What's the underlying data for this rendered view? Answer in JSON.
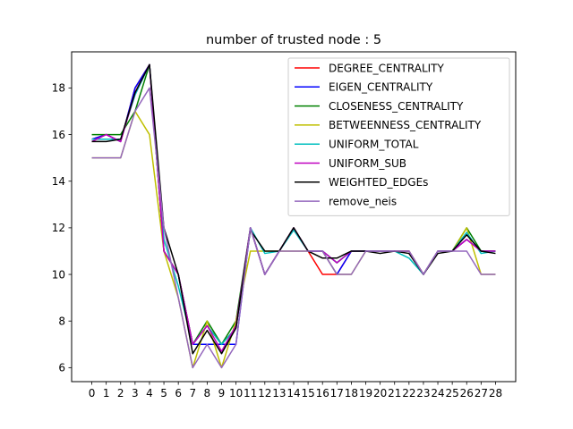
{
  "chart_data": {
    "type": "line",
    "title": "number of trusted node : 5",
    "xlabel": "",
    "ylabel": "",
    "x": [
      0,
      1,
      2,
      3,
      4,
      5,
      6,
      7,
      8,
      9,
      10,
      11,
      12,
      13,
      14,
      15,
      16,
      17,
      18,
      19,
      20,
      21,
      22,
      23,
      24,
      25,
      26,
      27,
      28
    ],
    "xlim": [
      -1.4,
      29.4
    ],
    "ylim": [
      5.4,
      19.55
    ],
    "yticks": [
      6,
      8,
      10,
      12,
      14,
      16,
      18
    ],
    "grid": false,
    "legend_position": "top-right",
    "series": [
      {
        "name": "DEGREE_CENTRALITY",
        "color": "#ff0000",
        "values": [
          15.8,
          16,
          15.7,
          18,
          19,
          11,
          10,
          7,
          7.8,
          7,
          7.7,
          12,
          10,
          11,
          12,
          11,
          10,
          10,
          11,
          11,
          11,
          11,
          11,
          10,
          11,
          11,
          11.5,
          11,
          11
        ]
      },
      {
        "name": "EIGEN_CENTRALITY",
        "color": "#0000ff",
        "values": [
          15.8,
          16,
          15.7,
          18,
          19,
          11,
          10,
          7,
          7,
          7,
          7,
          12,
          10,
          11,
          12,
          11,
          11,
          10,
          11,
          11,
          11,
          11,
          11,
          10,
          11,
          11,
          11.5,
          11,
          11
        ]
      },
      {
        "name": "CLOSENESS_CENTRALITY",
        "color": "#008000",
        "values": [
          16,
          16,
          16,
          17,
          19,
          11,
          10,
          7,
          8,
          7,
          8,
          12,
          10,
          11,
          12,
          11,
          11,
          10.5,
          11,
          11,
          11,
          11,
          11,
          10,
          11,
          11,
          12,
          11,
          11
        ]
      },
      {
        "name": "BETWEENNESS_CENTRALITY",
        "color": "#bfbf00",
        "values": [
          15,
          15,
          15,
          17,
          16,
          11,
          9,
          6,
          8,
          6,
          8,
          11,
          11,
          11,
          11,
          11,
          11,
          10,
          10,
          11,
          11,
          11,
          11,
          10,
          11,
          11,
          12,
          10,
          10
        ]
      },
      {
        "name": "UNIFORM_TOTAL",
        "color": "#00bfbf",
        "values": [
          15.8,
          15.8,
          15.8,
          17.7,
          19,
          11.5,
          9.5,
          7,
          7.8,
          7,
          7.7,
          12,
          10.9,
          11,
          11.9,
          11,
          11,
          10.5,
          11,
          11,
          11,
          11,
          10.7,
          10,
          11,
          11,
          11.8,
          10.9,
          11
        ]
      },
      {
        "name": "UNIFORM_SUB",
        "color": "#bf00bf",
        "values": [
          15.7,
          16,
          15.7,
          17.8,
          19,
          11,
          10,
          7,
          7.8,
          6.7,
          7.8,
          12,
          10,
          11,
          12,
          11,
          11,
          10.5,
          11,
          11,
          11,
          11,
          11,
          10,
          11,
          11,
          11.5,
          11,
          11
        ]
      },
      {
        "name": "WEIGHTED_EDGEs",
        "color": "#000000",
        "values": [
          15.7,
          15.7,
          15.8,
          17.8,
          19,
          12,
          10,
          6.6,
          7.6,
          6.6,
          7.7,
          11.9,
          11,
          11,
          12,
          11,
          10.7,
          10.7,
          11,
          11,
          10.9,
          11,
          10.9,
          10,
          10.9,
          11,
          11.7,
          11,
          10.9
        ]
      },
      {
        "name": "remove_neis",
        "color": "#9467bd",
        "values": [
          15,
          15,
          15,
          17,
          18,
          12,
          9,
          6,
          7,
          6,
          7,
          12,
          10,
          11,
          11,
          11,
          11,
          10,
          10,
          11,
          11,
          11,
          11,
          10,
          11,
          11,
          11,
          10,
          10
        ]
      }
    ]
  }
}
